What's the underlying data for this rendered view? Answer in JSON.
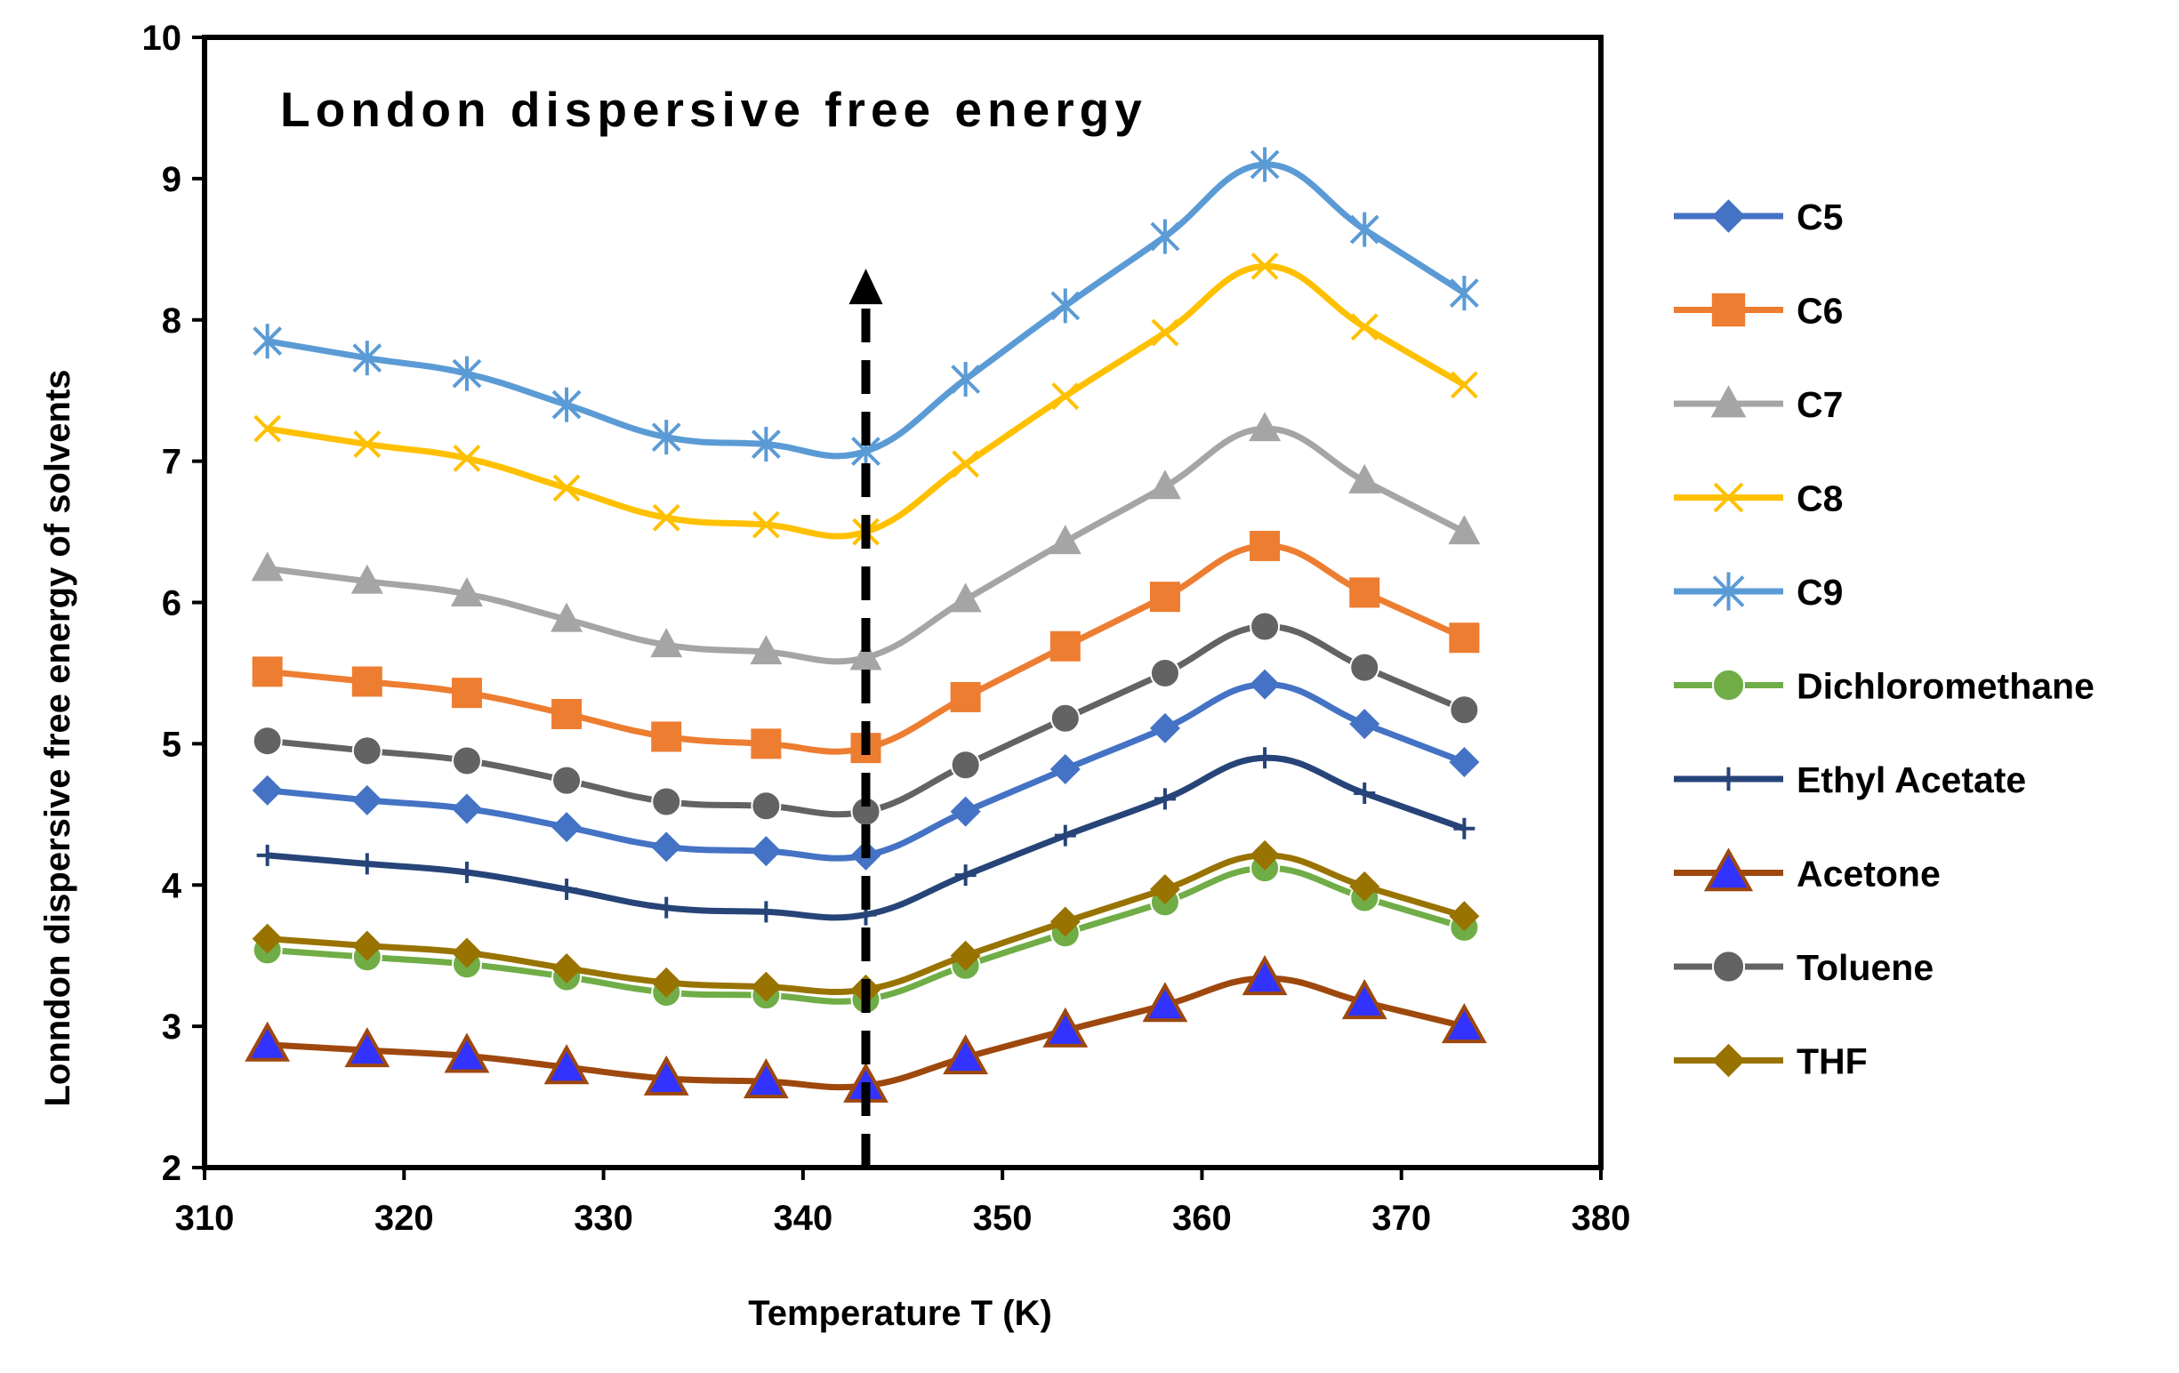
{
  "chart_data": {
    "type": "line",
    "title": "London dispersive free energy",
    "xlabel": "Temperature T (K)",
    "ylabel": "Lonndon dispersive free energy of solvents",
    "xlim": [
      310,
      380
    ],
    "ylim": [
      2,
      10
    ],
    "xticks": [
      "310",
      "320",
      "330",
      "340",
      "350",
      "360",
      "370",
      "380"
    ],
    "yticks": [
      "2",
      "3",
      "4",
      "5",
      "6",
      "7",
      "8",
      "9",
      "10"
    ],
    "x": [
      313.15,
      318.15,
      323.15,
      328.15,
      333.15,
      338.15,
      343.15,
      348.15,
      353.15,
      358.15,
      363.15,
      368.15,
      373.15
    ],
    "series": [
      {
        "name": "C5",
        "color": "#4472C4",
        "marker": "diamond",
        "values": [
          4.67,
          4.6,
          4.54,
          4.41,
          4.27,
          4.24,
          4.21,
          4.52,
          4.82,
          5.11,
          5.42,
          5.14,
          4.87
        ]
      },
      {
        "name": "C6",
        "color": "#ED7D31",
        "marker": "square",
        "values": [
          5.51,
          5.44,
          5.36,
          5.21,
          5.05,
          5.0,
          4.97,
          5.33,
          5.69,
          6.04,
          6.4,
          6.07,
          5.75
        ]
      },
      {
        "name": "C7",
        "color": "#A5A5A5",
        "marker": "triangle",
        "values": [
          6.24,
          6.15,
          6.06,
          5.88,
          5.7,
          5.65,
          5.61,
          6.02,
          6.43,
          6.82,
          7.23,
          6.86,
          6.5
        ]
      },
      {
        "name": "C8",
        "color": "#FFC000",
        "marker": "x",
        "values": [
          7.23,
          7.12,
          7.02,
          6.81,
          6.6,
          6.55,
          6.5,
          6.98,
          7.46,
          7.91,
          8.38,
          7.95,
          7.54
        ]
      },
      {
        "name": "C9",
        "color": "#5B9BD5",
        "marker": "star",
        "values": [
          7.85,
          7.73,
          7.62,
          7.4,
          7.17,
          7.12,
          7.07,
          7.58,
          8.1,
          8.59,
          9.1,
          8.64,
          8.19
        ]
      },
      {
        "name": "Dichloromethane",
        "color": "#70AD47",
        "marker": "circle",
        "values": [
          3.54,
          3.49,
          3.44,
          3.35,
          3.24,
          3.22,
          3.19,
          3.43,
          3.66,
          3.88,
          4.12,
          3.91,
          3.7
        ]
      },
      {
        "name": "Ethyl Acetate",
        "color": "#264478",
        "marker": "plus",
        "values": [
          4.21,
          4.15,
          4.09,
          3.97,
          3.84,
          3.81,
          3.79,
          4.07,
          4.35,
          4.61,
          4.9,
          4.65,
          4.4
        ]
      },
      {
        "name": "Acetone",
        "color": "#9E480E",
        "marker": "triangle-blue",
        "values": [
          2.87,
          2.83,
          2.79,
          2.71,
          2.63,
          2.61,
          2.58,
          2.78,
          2.97,
          3.15,
          3.34,
          3.17,
          3.0
        ]
      },
      {
        "name": "Toluene",
        "color": "#636363",
        "marker": "circle",
        "values": [
          5.02,
          4.95,
          4.88,
          4.74,
          4.59,
          4.56,
          4.52,
          4.85,
          5.18,
          5.5,
          5.83,
          5.54,
          5.24
        ]
      },
      {
        "name": "THF",
        "color": "#997300",
        "marker": "diamond",
        "values": [
          3.62,
          3.57,
          3.52,
          3.41,
          3.31,
          3.28,
          3.26,
          3.5,
          3.74,
          3.97,
          4.21,
          3.99,
          3.78
        ]
      }
    ],
    "annotation": {
      "type": "dashed-vertical-arrow",
      "x": 343.15,
      "y_from": 2,
      "y_to": 8.3
    },
    "grid": false,
    "legend_position": "right"
  }
}
